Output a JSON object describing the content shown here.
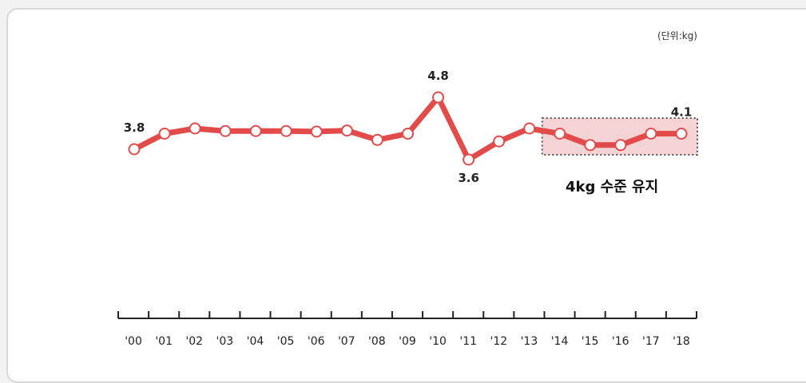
{
  "unit_label": "(단위:kg)",
  "colors": {
    "line": "#e34b4b",
    "marker_fill": "#ffffff",
    "highlight_fill": "#f3d3d3",
    "highlight_border": "#555555",
    "axis": "#222222"
  },
  "chart_data": {
    "type": "line",
    "title": "",
    "xlabel": "",
    "ylabel": "",
    "unit": "kg",
    "categories": [
      "'00",
      "'01",
      "'02",
      "'03",
      "'04",
      "'05",
      "'06",
      "'07",
      "'08",
      "'09",
      "'10",
      "'11",
      "'12",
      "'13",
      "'14",
      "'15",
      "'16",
      "'17",
      "'18"
    ],
    "series": [
      {
        "values": [
          3.8,
          4.1,
          4.2,
          4.15,
          4.15,
          4.15,
          4.14,
          4.16,
          3.98,
          4.1,
          4.8,
          3.6,
          3.95,
          4.2,
          4.1,
          3.88,
          3.88,
          4.1,
          4.1
        ]
      }
    ],
    "data_labels": [
      {
        "index": 0,
        "text": "3.8"
      },
      {
        "index": 10,
        "text": "4.8"
      },
      {
        "index": 11,
        "text": "3.6"
      },
      {
        "index": 18,
        "text": "4.1"
      }
    ],
    "annotation": {
      "text": "4kg 수준 유지",
      "from_index": 13,
      "to_index": 18
    },
    "grid": false,
    "ylim": [
      3.6,
      4.8
    ]
  }
}
